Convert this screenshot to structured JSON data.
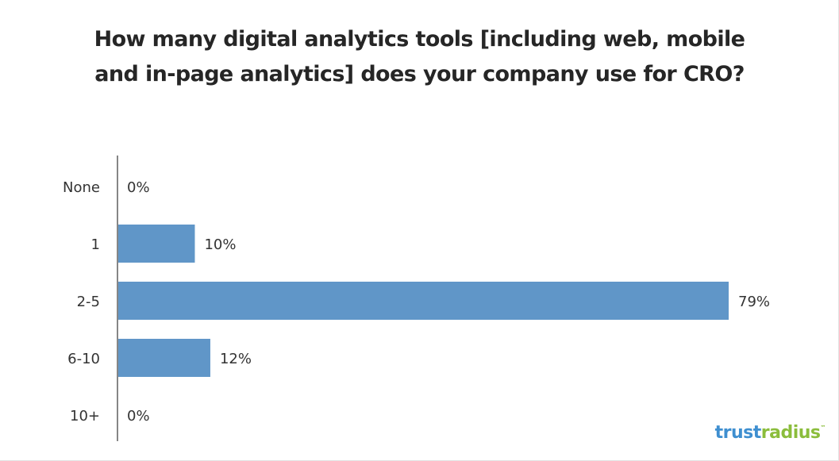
{
  "chart_data": {
    "type": "bar",
    "orientation": "horizontal",
    "title_lines": [
      "How many digital analytics tools [including web, mobile",
      "and in-page analytics] does your company use for CRO?"
    ],
    "categories": [
      "None",
      "1",
      "2-5",
      "6-10",
      "10+"
    ],
    "values": [
      0,
      10,
      79,
      12,
      0
    ],
    "data_labels": [
      "0%",
      "10%",
      "79%",
      "12%",
      "0%"
    ],
    "unit": "%",
    "xlim": [
      0,
      80
    ],
    "bar_color": "#6096c8",
    "axis_color": "#868686",
    "grid": false,
    "legend": "none"
  },
  "brand": {
    "part1": "trust",
    "part2": "radius",
    "mark": "™",
    "color1": "#3f8fd0",
    "color2": "#8bbd3c"
  }
}
